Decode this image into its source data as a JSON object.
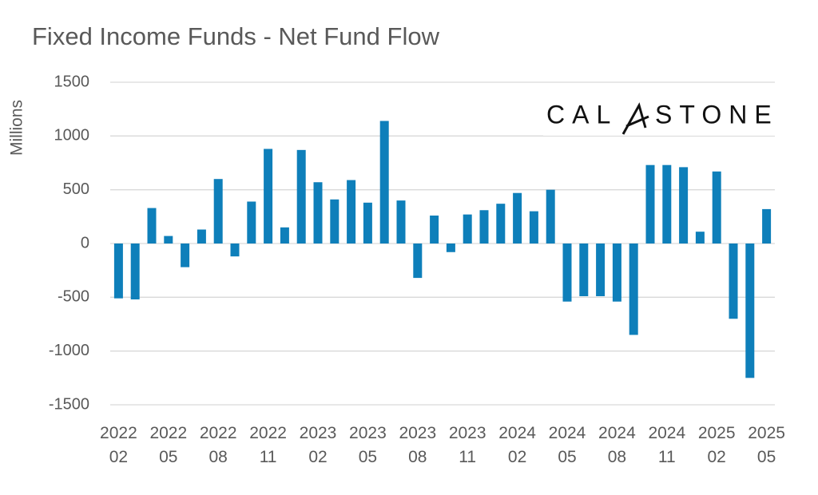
{
  "chart_data": {
    "type": "bar",
    "title": "Fixed Income Funds - Net Fund Flow",
    "y_label": "Millions",
    "logo": {
      "left": "CAL",
      "right": "STONE"
    },
    "categories": [
      "2022 02",
      null,
      null,
      "2022 05",
      null,
      null,
      "2022 08",
      null,
      null,
      "2022 11",
      null,
      null,
      "2023 02",
      null,
      null,
      "2023 05",
      null,
      null,
      "2023 08",
      null,
      null,
      "2023 11",
      null,
      null,
      "2024 02",
      null,
      null,
      "2024 05",
      null,
      null,
      "2024 08",
      null,
      null,
      "2024 11",
      null,
      null,
      "2025 02",
      null,
      null,
      "2025 05"
    ],
    "values": [
      -510,
      -520,
      330,
      70,
      -220,
      130,
      600,
      -120,
      390,
      880,
      150,
      870,
      570,
      410,
      590,
      380,
      1140,
      400,
      -320,
      260,
      -80,
      270,
      310,
      370,
      470,
      300,
      500,
      -540,
      -490,
      -490,
      -540,
      -850,
      730,
      730,
      710,
      110,
      670,
      -700,
      -1250,
      320
    ],
    "color": "#0e7fba",
    "ylim": [
      -1500,
      1500
    ],
    "yticks": [
      -1500,
      -1000,
      -500,
      0,
      500,
      1000,
      1500
    ],
    "grid": true
  }
}
